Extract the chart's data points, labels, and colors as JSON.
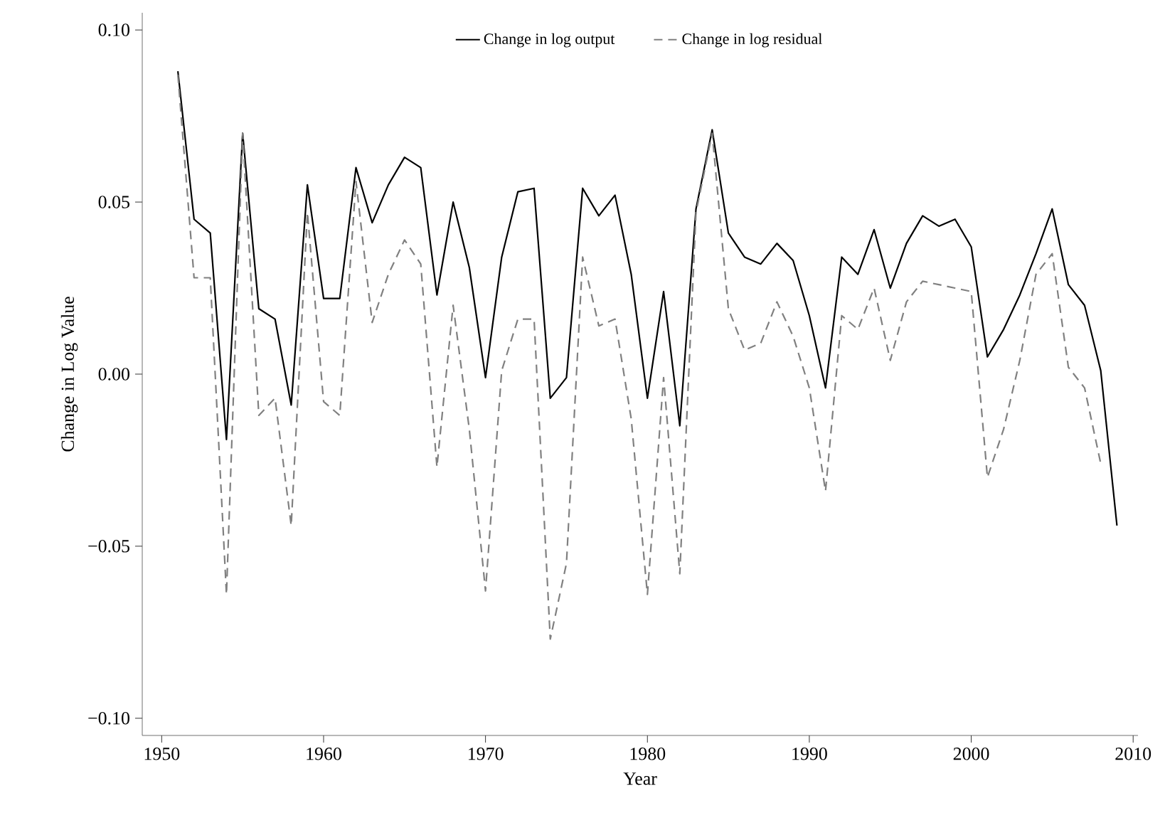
{
  "chart_data": {
    "type": "line",
    "xlabel": "Year",
    "ylabel": "Change in Log Value",
    "x": [
      1951,
      1952,
      1953,
      1954,
      1955,
      1956,
      1957,
      1958,
      1959,
      1960,
      1961,
      1962,
      1963,
      1964,
      1965,
      1966,
      1967,
      1968,
      1969,
      1970,
      1971,
      1972,
      1973,
      1974,
      1975,
      1976,
      1977,
      1978,
      1979,
      1980,
      1981,
      1982,
      1983,
      1984,
      1985,
      1986,
      1987,
      1988,
      1989,
      1990,
      1991,
      1992,
      1993,
      1994,
      1995,
      1996,
      1997,
      1998,
      1999,
      2000,
      2001,
      2002,
      2003,
      2004,
      2005,
      2006,
      2007,
      2008,
      2009
    ],
    "series": [
      {
        "name": "Change in log output",
        "color": "#000000",
        "line_style": "solid",
        "values": [
          0.088,
          0.045,
          0.041,
          -0.019,
          0.07,
          0.019,
          0.016,
          -0.009,
          0.055,
          0.022,
          0.022,
          0.06,
          0.044,
          0.055,
          0.063,
          0.06,
          0.023,
          0.05,
          0.031,
          -0.001,
          0.034,
          0.053,
          0.054,
          -0.007,
          -0.001,
          0.054,
          0.046,
          0.052,
          0.029,
          -0.007,
          0.024,
          -0.015,
          0.048,
          0.071,
          0.041,
          0.034,
          0.032,
          0.038,
          0.033,
          0.017,
          -0.004,
          0.034,
          0.029,
          0.042,
          0.025,
          0.038,
          0.046,
          0.043,
          0.045,
          0.037,
          0.005,
          0.013,
          0.023,
          0.035,
          0.048,
          0.026,
          0.02,
          0.001,
          -0.044
        ]
      },
      {
        "name": "Change in log residual",
        "color": "#808080",
        "line_style": "dashed",
        "values": [
          0.087,
          0.028,
          0.028,
          -0.064,
          0.07,
          -0.012,
          -0.007,
          -0.044,
          0.047,
          -0.008,
          -0.012,
          0.056,
          0.015,
          0.029,
          0.039,
          0.032,
          -0.027,
          0.02,
          -0.016,
          -0.063,
          0.001,
          0.016,
          0.016,
          -0.077,
          -0.055,
          0.034,
          0.014,
          0.016,
          -0.013,
          -0.064,
          -0.001,
          -0.058,
          0.047,
          0.07,
          0.019,
          0.007,
          0.009,
          0.021,
          0.011,
          -0.004,
          -0.034,
          0.017,
          0.013,
          0.025,
          0.004,
          0.021,
          0.027,
          0.026,
          0.025,
          0.024,
          -0.03,
          -0.016,
          0.004,
          0.029,
          0.035,
          0.002,
          -0.004,
          -0.026,
          null
        ]
      }
    ],
    "xlim": [
      1948.8,
      2010.3
    ],
    "ylim": [
      -0.105,
      0.105
    ],
    "xticks": [
      1950,
      1960,
      1970,
      1980,
      1990,
      2000,
      2010
    ],
    "yticks": [
      {
        "value": -0.1,
        "label": "−0.10"
      },
      {
        "value": -0.05,
        "label": "−0.05"
      },
      {
        "value": 0,
        "label": "0.00"
      },
      {
        "value": 0.05,
        "label": "0.05"
      },
      {
        "value": 0.1,
        "label": "0.10"
      }
    ],
    "legend": "top",
    "grid": false
  }
}
